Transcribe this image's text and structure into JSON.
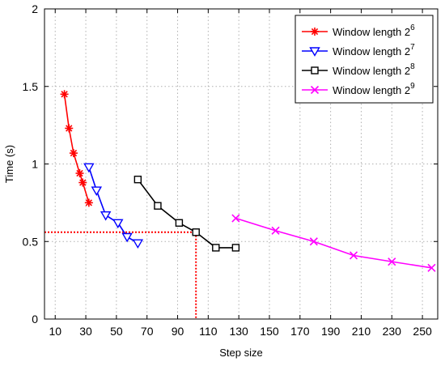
{
  "chart_data": {
    "type": "line",
    "xlabel": "Step size",
    "ylabel": "Time (s)",
    "xlim": [
      3,
      260
    ],
    "ylim": [
      0,
      2
    ],
    "xticks": [
      10,
      30,
      50,
      70,
      90,
      110,
      130,
      150,
      170,
      190,
      210,
      230,
      250
    ],
    "yticks": [
      0,
      0.5,
      1,
      1.5,
      2
    ],
    "ytick_labels": [
      "0",
      "0.5",
      "1",
      "1.5",
      "2"
    ],
    "grid": true,
    "legend_position": "top-right",
    "series": [
      {
        "name": "Window length 2",
        "name_exponent": "6",
        "color": "#ff0000",
        "marker": "asterisk",
        "x": [
          16,
          19,
          22,
          26,
          28,
          32
        ],
        "y": [
          1.45,
          1.23,
          1.07,
          0.94,
          0.88,
          0.75
        ]
      },
      {
        "name": "Window length 2",
        "name_exponent": "7",
        "color": "#0000ff",
        "marker": "triangle-down",
        "x": [
          32,
          37,
          43,
          51,
          57,
          64
        ],
        "y": [
          0.98,
          0.83,
          0.67,
          0.62,
          0.53,
          0.49
        ]
      },
      {
        "name": "Window length 2",
        "name_exponent": "8",
        "color": "#000000",
        "marker": "square",
        "x": [
          64,
          77,
          91,
          102,
          115,
          128
        ],
        "y": [
          0.9,
          0.73,
          0.62,
          0.56,
          0.46,
          0.46
        ]
      },
      {
        "name": "Window length 2",
        "name_exponent": "9",
        "color": "#ff00ff",
        "marker": "x",
        "x": [
          128,
          154,
          179,
          205,
          230,
          256
        ],
        "y": [
          0.65,
          0.57,
          0.5,
          0.41,
          0.37,
          0.33
        ]
      }
    ],
    "reference_lines": {
      "color": "#ff0000",
      "x": 102,
      "y": 0.56
    }
  }
}
